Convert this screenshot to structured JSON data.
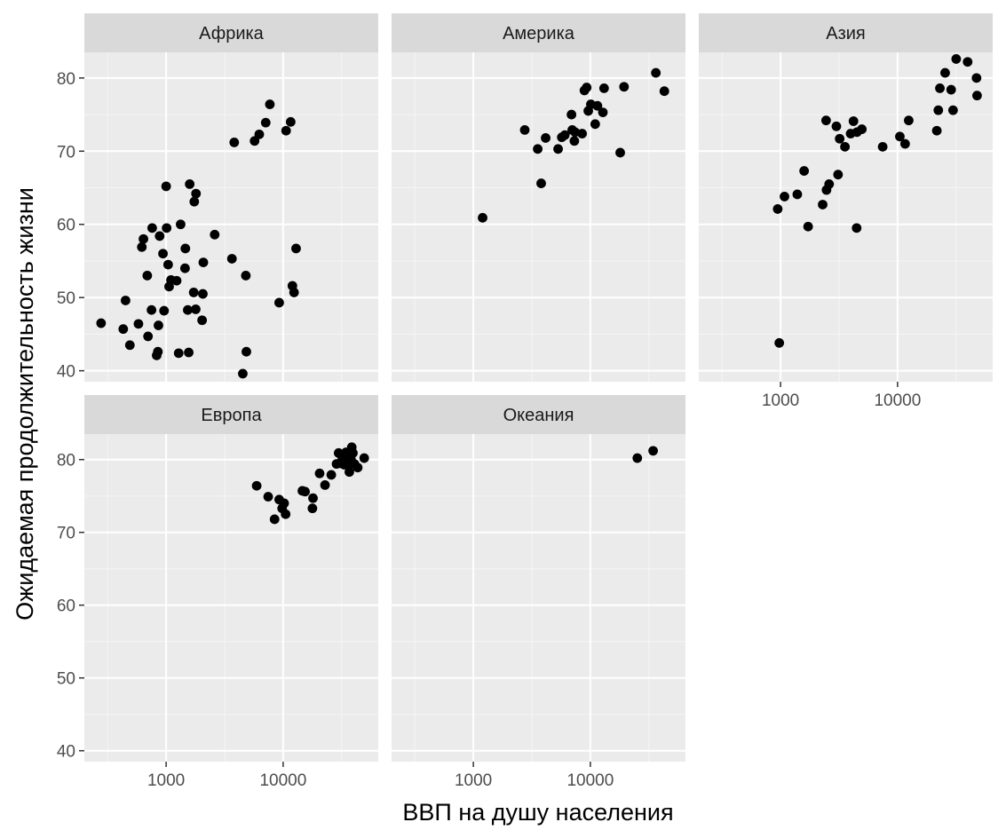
{
  "chart_data": {
    "type": "scatter",
    "facet": "continent",
    "xlabel": "ВВП на душу населения",
    "ylabel": "Ожидаемая продолжительность жизни",
    "x_scale": "log10",
    "xlim": [
      200,
      65000
    ],
    "ylim": [
      38.5,
      83.5
    ],
    "x_ticks": [
      1000,
      10000
    ],
    "x_tick_labels": [
      "1000",
      "10000"
    ],
    "y_ticks": [
      40,
      50,
      60,
      70,
      80
    ],
    "y_tick_labels": [
      "40",
      "50",
      "60",
      "70",
      "80"
    ],
    "grid": true,
    "legend": "none",
    "point_color": "#000000",
    "panel_background": "#ebebeb",
    "strip_background": "#d9d9d9",
    "panels": [
      {
        "name": "Африка",
        "points": [
          [
            278,
            46.5
          ],
          [
            430,
            45.7
          ],
          [
            450,
            49.6
          ],
          [
            490,
            43.5
          ],
          [
            580,
            46.4
          ],
          [
            620,
            56.9
          ],
          [
            640,
            58.0
          ],
          [
            690,
            53.0
          ],
          [
            700,
            44.7
          ],
          [
            750,
            48.3
          ],
          [
            760,
            59.5
          ],
          [
            830,
            42.1
          ],
          [
            850,
            42.6
          ],
          [
            860,
            46.2
          ],
          [
            880,
            58.4
          ],
          [
            940,
            56.0
          ],
          [
            960,
            48.2
          ],
          [
            1000,
            65.2
          ],
          [
            1010,
            59.5
          ],
          [
            1040,
            54.5
          ],
          [
            1060,
            51.5
          ],
          [
            1100,
            52.4
          ],
          [
            1230,
            52.3
          ],
          [
            1280,
            42.4
          ],
          [
            1330,
            60.0
          ],
          [
            1450,
            54.0
          ],
          [
            1460,
            56.7
          ],
          [
            1530,
            48.3
          ],
          [
            1560,
            42.5
          ],
          [
            1590,
            65.5
          ],
          [
            1720,
            50.7
          ],
          [
            1740,
            63.1
          ],
          [
            1800,
            64.2
          ],
          [
            1790,
            48.4
          ],
          [
            2030,
            46.9
          ],
          [
            2060,
            50.5
          ],
          [
            2080,
            54.8
          ],
          [
            2600,
            58.6
          ],
          [
            3650,
            55.3
          ],
          [
            3820,
            71.2
          ],
          [
            4520,
            39.6
          ],
          [
            4800,
            53.0
          ],
          [
            4850,
            42.6
          ],
          [
            5700,
            71.4
          ],
          [
            6250,
            72.3
          ],
          [
            7100,
            73.9
          ],
          [
            7700,
            76.4
          ],
          [
            9250,
            49.3
          ],
          [
            10600,
            72.8
          ],
          [
            11600,
            74.0
          ],
          [
            12000,
            51.6
          ],
          [
            12400,
            50.7
          ],
          [
            12900,
            56.7
          ]
        ]
      },
      {
        "name": "Америка",
        "points": [
          [
            1200,
            60.9
          ],
          [
            2750,
            72.9
          ],
          [
            3550,
            70.3
          ],
          [
            3800,
            65.6
          ],
          [
            4150,
            71.8
          ],
          [
            5300,
            70.3
          ],
          [
            5700,
            71.9
          ],
          [
            6050,
            72.2
          ],
          [
            6900,
            75.0
          ],
          [
            7000,
            72.9
          ],
          [
            7300,
            71.4
          ],
          [
            7400,
            72.6
          ],
          [
            8500,
            72.4
          ],
          [
            8900,
            78.3
          ],
          [
            9300,
            78.7
          ],
          [
            9600,
            75.5
          ],
          [
            10100,
            76.4
          ],
          [
            11000,
            73.7
          ],
          [
            11500,
            76.2
          ],
          [
            12800,
            75.3
          ],
          [
            13100,
            78.6
          ],
          [
            18000,
            69.8
          ],
          [
            19400,
            78.8
          ],
          [
            36300,
            80.7
          ],
          [
            42900,
            78.2
          ]
        ]
      },
      {
        "name": "Азия",
        "points": [
          [
            945,
            62.1
          ],
          [
            975,
            43.8
          ],
          [
            1080,
            63.8
          ],
          [
            1390,
            64.1
          ],
          [
            1590,
            67.3
          ],
          [
            1720,
            59.7
          ],
          [
            2290,
            62.7
          ],
          [
            2450,
            74.2
          ],
          [
            2470,
            64.7
          ],
          [
            2600,
            65.5
          ],
          [
            3000,
            73.4
          ],
          [
            3100,
            66.8
          ],
          [
            3200,
            71.7
          ],
          [
            3550,
            70.6
          ],
          [
            3970,
            72.4
          ],
          [
            4200,
            74.1
          ],
          [
            4470,
            59.5
          ],
          [
            4500,
            72.6
          ],
          [
            4950,
            73.0
          ],
          [
            7460,
            70.6
          ],
          [
            10460,
            72.0
          ],
          [
            11600,
            71.0
          ],
          [
            12450,
            74.2
          ],
          [
            21650,
            72.8
          ],
          [
            22300,
            75.6
          ],
          [
            23000,
            78.6
          ],
          [
            25500,
            80.7
          ],
          [
            28700,
            78.4
          ],
          [
            29800,
            75.6
          ],
          [
            31700,
            82.6
          ],
          [
            39700,
            82.2
          ],
          [
            47300,
            80.0
          ],
          [
            47800,
            77.6
          ]
        ]
      },
      {
        "name": "Европа",
        "points": [
          [
            5940,
            76.4
          ],
          [
            7450,
            74.9
          ],
          [
            8450,
            71.8
          ],
          [
            9250,
            74.5
          ],
          [
            9800,
            73.3
          ],
          [
            10200,
            74.0
          ],
          [
            10500,
            72.5
          ],
          [
            14600,
            75.7
          ],
          [
            15400,
            75.6
          ],
          [
            17800,
            73.3
          ],
          [
            18000,
            74.7
          ],
          [
            20500,
            78.1
          ],
          [
            22800,
            76.5
          ],
          [
            25800,
            77.9
          ],
          [
            28600,
            79.4
          ],
          [
            29800,
            80.9
          ],
          [
            30500,
            79.5
          ],
          [
            31700,
            80.5
          ],
          [
            33000,
            80.2
          ],
          [
            33200,
            79.3
          ],
          [
            33800,
            80.5
          ],
          [
            34500,
            81.0
          ],
          [
            35300,
            79.8
          ],
          [
            36100,
            79.3
          ],
          [
            36800,
            78.3
          ],
          [
            37500,
            80.6
          ],
          [
            38000,
            80.0
          ],
          [
            38600,
            81.7
          ],
          [
            39500,
            80.9
          ],
          [
            40700,
            79.4
          ],
          [
            43400,
            78.9
          ],
          [
            49300,
            80.2
          ]
        ]
      },
      {
        "name": "Океания",
        "points": [
          [
            25200,
            80.2
          ],
          [
            34400,
            81.2
          ]
        ]
      }
    ]
  }
}
